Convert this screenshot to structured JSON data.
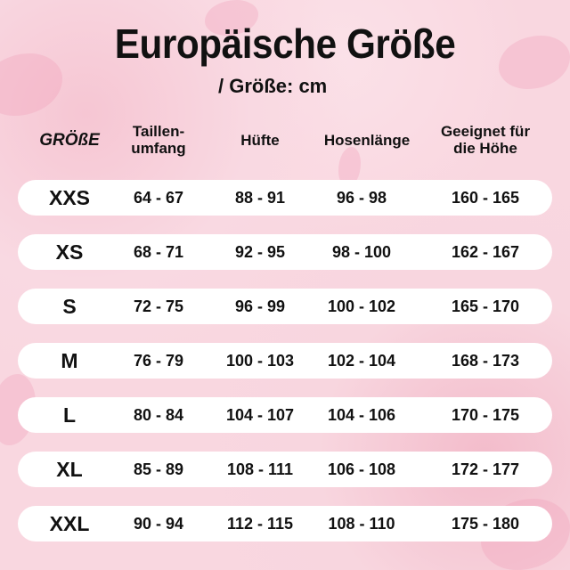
{
  "title": "Europäische Größe",
  "subtitle": "/  Größe: cm",
  "headers": {
    "size": "GRÖßE",
    "waist": "Taillen-\numfang",
    "hip": "Hüfte",
    "length": "Hosenlänge",
    "height": "Geeignet für\ndie Höhe"
  },
  "rows": [
    {
      "size": "XXS",
      "waist": "64 - 67",
      "hip": "88 - 91",
      "length": "96 - 98",
      "height": "160 - 165"
    },
    {
      "size": "XS",
      "waist": "68 - 71",
      "hip": "92 - 95",
      "length": "98 - 100",
      "height": "162 - 167"
    },
    {
      "size": "S",
      "waist": "72 - 75",
      "hip": "96 - 99",
      "length": "100 - 102",
      "height": "165 - 170"
    },
    {
      "size": "M",
      "waist": "76 - 79",
      "hip": "100 - 103",
      "length": "102 - 104",
      "height": "168 - 173"
    },
    {
      "size": "L",
      "waist": "80 - 84",
      "hip": "104 - 107",
      "length": "104 - 106",
      "height": "170 - 175"
    },
    {
      "size": "XL",
      "waist": "85 - 89",
      "hip": "108 - 111",
      "length": "106 - 108",
      "height": "172 - 177"
    },
    {
      "size": "XXL",
      "waist": "90 - 94",
      "hip": "112 - 115",
      "length": "108 - 110",
      "height": "175 - 180"
    }
  ]
}
